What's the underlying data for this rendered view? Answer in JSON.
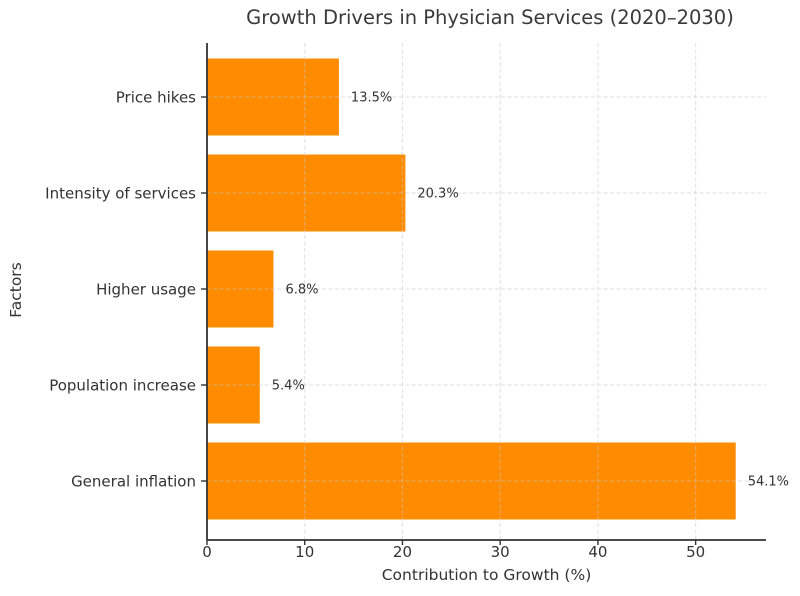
{
  "figure": {
    "background": "#ffffff"
  },
  "chart_data": {
    "type": "bar",
    "orientation": "horizontal",
    "title": "Growth Drivers in Physician Services (2020–2030)",
    "xlabel": "Contribution to Growth (%)",
    "ylabel": "Factors",
    "categories_top_to_bottom": [
      "Price hikes",
      "Intensity of services",
      "Higher usage",
      "Population increase",
      "General inflation"
    ],
    "values": [
      13.5,
      20.3,
      6.8,
      5.4,
      54.1
    ],
    "value_labels": [
      "13.5%",
      "20.3%",
      "6.8%",
      "5.4%",
      "54.1%"
    ],
    "xticks": [
      0,
      10,
      20,
      30,
      40,
      50
    ],
    "xlim": [
      0,
      57.2
    ],
    "grid": true,
    "grid_style": "dashed",
    "legend": null,
    "bar_color": "#ff8c00",
    "grid_color": "#c4c4c4",
    "axis_color": "#333333",
    "text_color": "#333333"
  }
}
